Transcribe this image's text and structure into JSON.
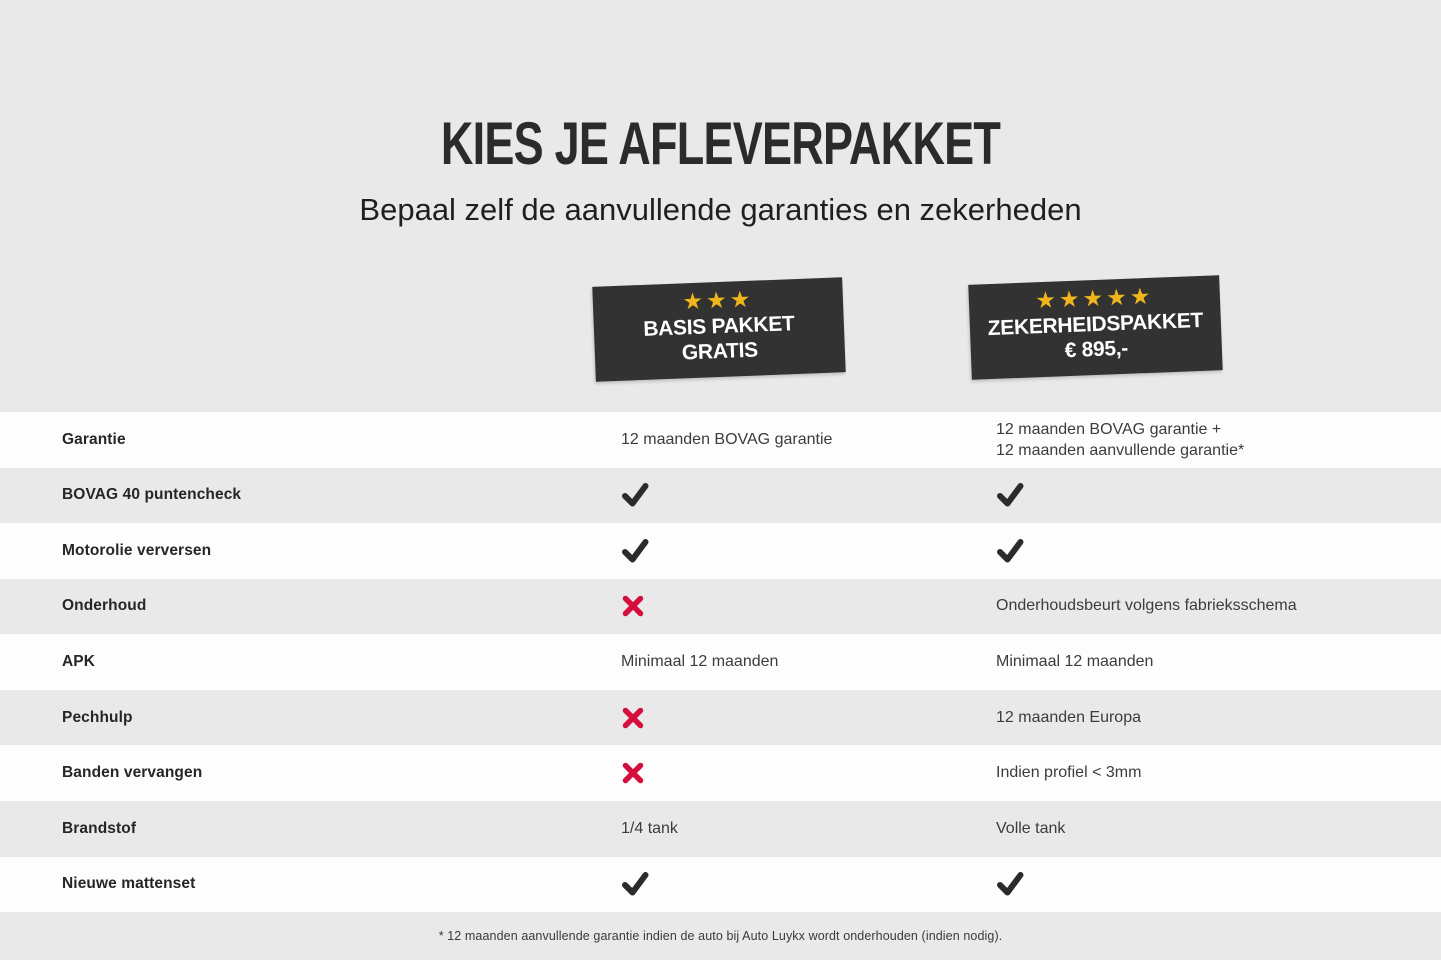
{
  "colors": {
    "page_bg": "#e9e9e9",
    "row_white": "#fdfdfd",
    "badge_bg": "#323232",
    "badge_text": "#ffffff",
    "star_gold": "#f0b41c",
    "accent_red": "#d50f3d",
    "text_dark": "#2b2b2b",
    "text_value": "#3c3c3c"
  },
  "header": {
    "title": "KIES JE AFLEVERPAKKET",
    "subtitle": "Bepaal zelf de aanvullende garanties en zekerheden"
  },
  "packages": [
    {
      "id": "basis",
      "stars": 3,
      "line1": "BASIS PAKKET",
      "line2": "GRATIS"
    },
    {
      "id": "zekerheid",
      "stars": 5,
      "line1": "ZEKERHEIDSPAKKET",
      "line2": "€ 895,-"
    }
  ],
  "table": {
    "rows": [
      {
        "label": "Garantie",
        "basis": {
          "type": "text",
          "text": "12 maanden BOVAG garantie"
        },
        "zekerheid": {
          "type": "text",
          "lines": [
            "12 maanden BOVAG garantie +",
            "12 maanden aanvullende garantie*"
          ]
        }
      },
      {
        "label": "BOVAG 40 puntencheck",
        "basis": {
          "type": "check"
        },
        "zekerheid": {
          "type": "check"
        }
      },
      {
        "label": "Motorolie verversen",
        "basis": {
          "type": "check"
        },
        "zekerheid": {
          "type": "check"
        }
      },
      {
        "label": "Onderhoud",
        "basis": {
          "type": "cross"
        },
        "zekerheid": {
          "type": "text",
          "text": "Onderhoudsbeurt volgens fabrieksschema"
        }
      },
      {
        "label": "APK",
        "basis": {
          "type": "text",
          "text": "Minimaal 12 maanden"
        },
        "zekerheid": {
          "type": "text",
          "text": "Minimaal 12 maanden"
        }
      },
      {
        "label": "Pechhulp",
        "basis": {
          "type": "cross"
        },
        "zekerheid": {
          "type": "text",
          "text": "12 maanden Europa"
        }
      },
      {
        "label": "Banden vervangen",
        "basis": {
          "type": "cross"
        },
        "zekerheid": {
          "type": "text",
          "text": "Indien profiel < 3mm"
        }
      },
      {
        "label": "Brandstof",
        "basis": {
          "type": "text",
          "text": "1/4 tank"
        },
        "zekerheid": {
          "type": "text",
          "text": "Volle tank"
        }
      },
      {
        "label": "Nieuwe mattenset",
        "basis": {
          "type": "check"
        },
        "zekerheid": {
          "type": "check"
        }
      }
    ]
  },
  "footnote": "* 12 maanden aanvullende garantie indien de auto bij Auto Luykx wordt onderhouden (indien nodig)."
}
